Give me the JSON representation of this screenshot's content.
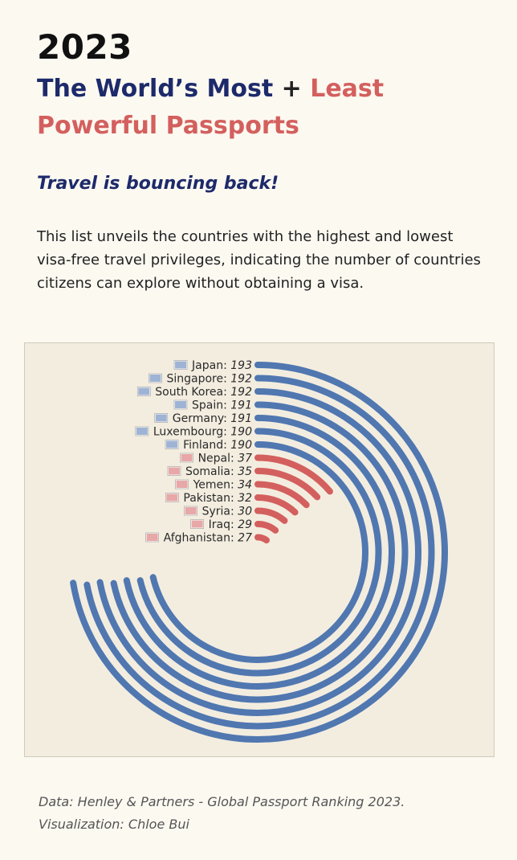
{
  "header": {
    "year": "2023",
    "title_part1": "The World’s Most",
    "title_plus": "+",
    "title_part2": "Least Powerful Passports",
    "subtitle": "Travel is bouncing back!",
    "description": "This list unveils the countries with the highest and lowest visa-free travel privileges, indicating the number of countries citizens can explore without obtaining a visa."
  },
  "footer": {
    "source": "Data: Henley & Partners - Global Passport Ranking 2023.",
    "credit": "Visualization: Chloe Bui"
  },
  "colors": {
    "most": "#5077b0",
    "least": "#d3605e"
  },
  "chart_data": {
    "type": "radial bar",
    "series": [
      {
        "name": "Most powerful",
        "color": "#5077b0",
        "categories": [
          "Japan",
          "Singapore",
          "South Korea",
          "Spain",
          "Germany",
          "Luxembourg",
          "Finland"
        ],
        "values": [
          193,
          192,
          192,
          191,
          191,
          190,
          190
        ]
      },
      {
        "name": "Least powerful",
        "color": "#d3605e",
        "categories": [
          "Nepal",
          "Somalia",
          "Yemen",
          "Pakistan",
          "Syria",
          "Iraq",
          "Afghanistan"
        ],
        "values": [
          37,
          35,
          34,
          32,
          30,
          29,
          27
        ]
      }
    ],
    "rows": [
      {
        "country": "Japan",
        "value": 193,
        "display": "193",
        "flag": "flag-japan",
        "group": "most"
      },
      {
        "country": "Singapore",
        "value": 192,
        "display": "192",
        "flag": "flag-singapore",
        "group": "most"
      },
      {
        "country": "South Korea",
        "value": 192,
        "display": "192",
        "flag": "flag-south-korea",
        "group": "most"
      },
      {
        "country": "Spain",
        "value": 191,
        "display": "191",
        "flag": "flag-spain",
        "group": "most"
      },
      {
        "country": "Germany",
        "value": 191,
        "display": "191",
        "flag": "flag-germany",
        "group": "most"
      },
      {
        "country": "Luxembourg",
        "value": 190,
        "display": "190",
        "flag": "flag-luxembourg",
        "group": "most"
      },
      {
        "country": "Finland",
        "value": 190,
        "display": "190",
        "flag": "flag-finland",
        "group": "most"
      },
      {
        "country": "Nepal",
        "value": 37,
        "display": "37",
        "flag": "flag-nepal",
        "group": "least"
      },
      {
        "country": "Somalia",
        "value": 35,
        "display": "35",
        "flag": "flag-somalia",
        "group": "least"
      },
      {
        "country": "Yemen",
        "value": 34,
        "display": "34",
        "flag": "flag-yemen",
        "group": "least"
      },
      {
        "country": "Pakistan",
        "value": 32,
        "display": "32",
        "flag": "flag-pakistan",
        "group": "least"
      },
      {
        "country": "Syria",
        "value": 30,
        "display": "30",
        "flag": "flag-syria",
        "group": "least"
      },
      {
        "country": "Iraq",
        "value": 29,
        "display": "29",
        "flag": "flag-iraq",
        "group": "least"
      },
      {
        "country": "Afghanistan",
        "value": 27,
        "display": "27",
        "flag": "flag-afghanistan",
        "group": "least"
      }
    ]
  }
}
